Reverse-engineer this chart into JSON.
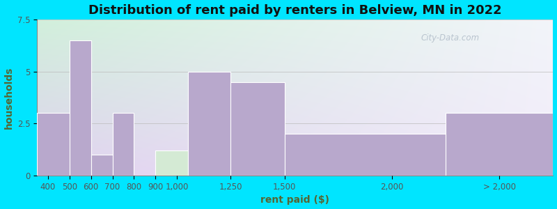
{
  "title": "Distribution of rent paid by renters in Belview, MN in 2022",
  "xlabel": "rent paid ($)",
  "ylabel": "households",
  "bar_color": "#b8a8cc",
  "bar_color_green": "#d4ead4",
  "bar_edge_color": "#ffffff",
  "background_outer": "#00e5ff",
  "background_plot_top_left": "#d0ede0",
  "background_plot_top_right": "#e8f0f8",
  "background_plot_bottom": "#d8c8e8",
  "ylim": [
    0,
    7.5
  ],
  "yticks": [
    0,
    2.5,
    5,
    7.5
  ],
  "title_fontsize": 13,
  "axis_label_fontsize": 10,
  "tick_fontsize": 8.5,
  "watermark_text": "City-Data.com",
  "watermark_color": "#b0bcc8",
  "xtick_labels": [
    "400",
    "500",
    "600",
    "700",
    "800",
    "900",
    "1,000",
    "1,250",
    "1,500",
    "2,000",
    "> 2,000"
  ],
  "xtick_positions": [
    400,
    500,
    600,
    700,
    800,
    900,
    1000,
    1250,
    1500,
    2000,
    2500
  ],
  "bar_lefts": [
    350,
    500,
    600,
    700,
    800,
    900,
    1050,
    1250,
    1500,
    2250
  ],
  "bar_rights": [
    500,
    600,
    700,
    800,
    900,
    1050,
    1250,
    1500,
    2250,
    2750
  ],
  "bar_heights": [
    3,
    6.5,
    1,
    3,
    0,
    1.2,
    5,
    4.5,
    2,
    3
  ],
  "bar_green_indices": [
    4,
    5
  ]
}
